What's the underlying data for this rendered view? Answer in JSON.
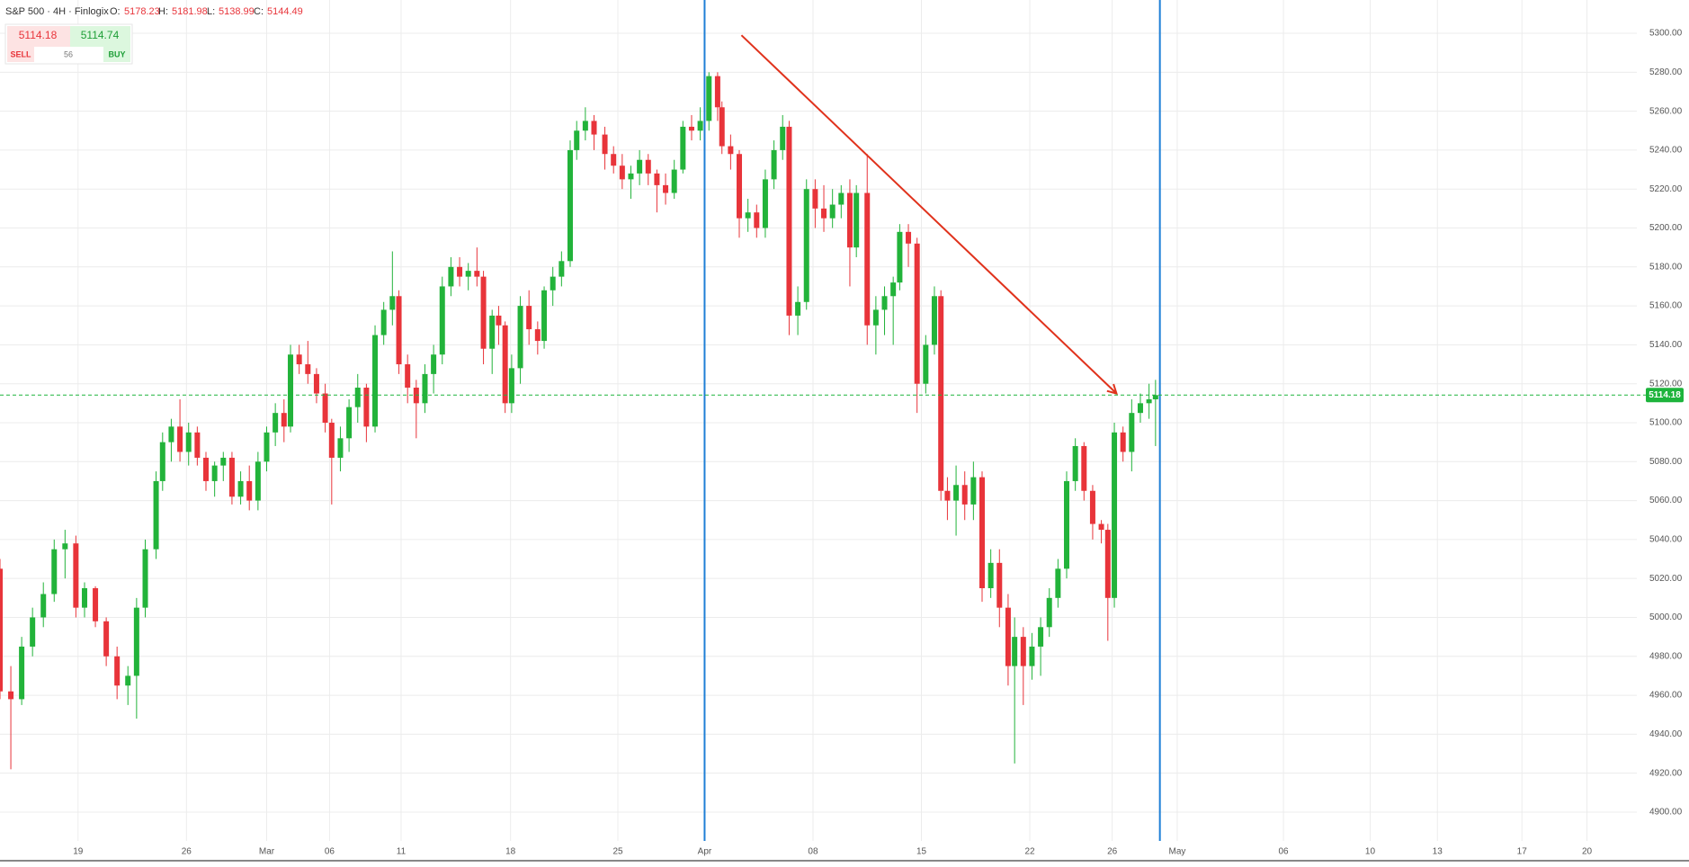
{
  "chart_data": {
    "type": "candlestick",
    "header": {
      "symbol": "S&P 500 · 4H · Finlogix",
      "o_label": "O:",
      "o": 5178.23,
      "h_label": "H:",
      "h": 5181.98,
      "l_label": "L:",
      "l": 5138.99,
      "c_label": "C:",
      "c": 5144.49
    },
    "trade": {
      "sell_price": 5114.18,
      "buy_price": 5114.74,
      "sell_label": "SELL",
      "buy_label": "BUY",
      "spread": 56
    },
    "last_price": 5114.18,
    "up_color": "#22b33a",
    "down_color": "#e8343a",
    "last_color": "#1db43c",
    "x": [
      -3.6,
      -3.1,
      -2.6,
      -2.1,
      -1.6,
      -1.1,
      -0.6,
      -0.1,
      0.3,
      0.8,
      1.3,
      1.8,
      2.3,
      2.7,
      3.1,
      3.6,
      3.9,
      4.3,
      4.7,
      5.1,
      5.5,
      5.9,
      6.3,
      6.7,
      7.1,
      7.5,
      7.9,
      8.3,
      8.7,
      9.1,
      9.5,
      9.8,
      10.2,
      10.6,
      11.0,
      11.4,
      11.7,
      12.1,
      12.5,
      12.9,
      13.3,
      13.7,
      14.1,
      14.5,
      14.8,
      15.2,
      15.6,
      16.0,
      16.4,
      16.8,
      17.2,
      17.6,
      18.0,
      18.4,
      18.7,
      19.1,
      19.4,
      19.7,
      20.0,
      20.4,
      20.8,
      21.2,
      21.5,
      21.9,
      22.3,
      22.7,
      23.0,
      23.4,
      23.8,
      24.3,
      24.7,
      25.1,
      25.5,
      25.9,
      26.3,
      26.7,
      27.1,
      27.5,
      27.9,
      28.3,
      28.7,
      29.1,
      29.5,
      29.7,
      30.1,
      30.5,
      30.9,
      31.3,
      31.7,
      32.1,
      32.5,
      32.8,
      33.2,
      33.6,
      34.0,
      34.4,
      34.8,
      35.2,
      35.6,
      35.9,
      36.4,
      36.8,
      37.2,
      37.6,
      37.9,
      38.3,
      38.7,
      39.1,
      39.5,
      39.8,
      40.1,
      40.5,
      40.9,
      41.3,
      41.7,
      42.1,
      42.5,
      42.9,
      43.2,
      43.6,
      44.0,
      44.4,
      44.8,
      45.2,
      45.6,
      46.0,
      46.4,
      46.8,
      47.2,
      47.5,
      47.8,
      48.2,
      48.6,
      49.0,
      49.4,
      49.7
    ],
    "open": [
      5025,
      4962,
      4958,
      4985,
      5000,
      5012,
      5035,
      5038,
      5005,
      5015,
      4998,
      4980,
      4965,
      4970,
      5005,
      5035,
      5070,
      5090,
      5098,
      5085,
      5095,
      5082,
      5070,
      5078,
      5082,
      5062,
      5070,
      5060,
      5080,
      5095,
      5105,
      5098,
      5135,
      5130,
      5125,
      5115,
      5100,
      5082,
      5092,
      5108,
      5118,
      5098,
      5145,
      5158,
      5165,
      5130,
      5118,
      5110,
      5125,
      5135,
      5170,
      5180,
      5175,
      5178,
      5175,
      5138,
      5155,
      5150,
      5110,
      5128,
      5160,
      5148,
      5142,
      5168,
      5175,
      5183,
      5240,
      5250,
      5255,
      5248,
      5238,
      5232,
      5225,
      5228,
      5235,
      5228,
      5222,
      5218,
      5230,
      5252,
      5250,
      5255,
      5278,
      5262,
      5242,
      5238,
      5205,
      5208,
      5200,
      5225,
      5240,
      5252,
      5155,
      5162,
      5220,
      5210,
      5205,
      5212,
      5218,
      5190,
      5218,
      5150,
      5158,
      5165,
      5172,
      5198,
      5192,
      5120,
      5140,
      5165,
      5065,
      5060,
      5068,
      5058,
      5072,
      5015,
      5028,
      5005,
      4975,
      4990,
      4975,
      4985,
      4995,
      5010,
      5025,
      5070,
      5088,
      5065,
      5048,
      5045,
      5010,
      5095,
      5085,
      5105,
      5110,
      5112
    ],
    "high": [
      5030,
      4975,
      4990,
      5005,
      5018,
      5040,
      5045,
      5042,
      5018,
      5016,
      5000,
      4985,
      4975,
      5010,
      5040,
      5075,
      5095,
      5102,
      5112,
      5100,
      5098,
      5085,
      5080,
      5085,
      5085,
      5075,
      5078,
      5085,
      5098,
      5110,
      5112,
      5140,
      5140,
      5142,
      5128,
      5120,
      5102,
      5098,
      5112,
      5125,
      5120,
      5150,
      5162,
      5188,
      5168,
      5135,
      5122,
      5130,
      5140,
      5175,
      5185,
      5185,
      5182,
      5190,
      5178,
      5158,
      5160,
      5152,
      5135,
      5165,
      5168,
      5152,
      5170,
      5180,
      5188,
      5245,
      5255,
      5262,
      5258,
      5252,
      5242,
      5238,
      5232,
      5240,
      5238,
      5230,
      5228,
      5235,
      5255,
      5258,
      5262,
      5280,
      5280,
      5265,
      5248,
      5240,
      5215,
      5212,
      5230,
      5245,
      5258,
      5255,
      5170,
      5225,
      5225,
      5222,
      5220,
      5222,
      5225,
      5222,
      5238,
      5165,
      5170,
      5175,
      5202,
      5202,
      5195,
      5145,
      5170,
      5168,
      5072,
      5078,
      5075,
      5080,
      5075,
      5035,
      5035,
      5012,
      5000,
      4995,
      4992,
      5000,
      5015,
      5030,
      5075,
      5092,
      5090,
      5068,
      5050,
      5048,
      5100,
      5098,
      5112,
      5115,
      5120,
      5122
    ],
    "low": [
      4958,
      4922,
      4955,
      4980,
      4995,
      5008,
      5020,
      5000,
      5000,
      4995,
      4975,
      4958,
      4955,
      4948,
      5000,
      5030,
      5065,
      5080,
      5080,
      5078,
      5078,
      5065,
      5062,
      5070,
      5058,
      5058,
      5055,
      5055,
      5075,
      5088,
      5090,
      5095,
      5125,
      5120,
      5110,
      5095,
      5058,
      5075,
      5085,
      5100,
      5090,
      5095,
      5140,
      5150,
      5125,
      5110,
      5092,
      5105,
      5115,
      5130,
      5165,
      5170,
      5168,
      5170,
      5130,
      5125,
      5140,
      5105,
      5105,
      5120,
      5140,
      5135,
      5138,
      5160,
      5170,
      5180,
      5235,
      5245,
      5240,
      5230,
      5228,
      5220,
      5215,
      5222,
      5222,
      5208,
      5212,
      5215,
      5228,
      5245,
      5245,
      5250,
      5255,
      5238,
      5230,
      5195,
      5198,
      5195,
      5195,
      5220,
      5235,
      5145,
      5145,
      5158,
      5200,
      5198,
      5200,
      5205,
      5170,
      5185,
      5140,
      5135,
      5145,
      5140,
      5168,
      5180,
      5105,
      5115,
      5135,
      5060,
      5050,
      5042,
      5050,
      5050,
      5008,
      5010,
      4995,
      4965,
      4925,
      4955,
      4968,
      4970,
      4990,
      5005,
      5020,
      5065,
      5060,
      5040,
      5038,
      4988,
      5005,
      5080,
      5075,
      5100,
      5102,
      5088
    ],
    "close": [
      4962,
      4958,
      4985,
      5000,
      5012,
      5035,
      5038,
      5005,
      5015,
      4998,
      4980,
      4965,
      4970,
      5005,
      5035,
      5070,
      5090,
      5098,
      5085,
      5095,
      5082,
      5070,
      5078,
      5082,
      5062,
      5070,
      5060,
      5080,
      5095,
      5105,
      5098,
      5135,
      5130,
      5125,
      5115,
      5100,
      5082,
      5092,
      5108,
      5118,
      5098,
      5145,
      5158,
      5165,
      5130,
      5118,
      5110,
      5125,
      5135,
      5170,
      5180,
      5175,
      5178,
      5175,
      5138,
      5155,
      5150,
      5110,
      5128,
      5160,
      5148,
      5142,
      5168,
      5175,
      5183,
      5240,
      5250,
      5255,
      5248,
      5238,
      5232,
      5225,
      5228,
      5235,
      5228,
      5222,
      5218,
      5230,
      5252,
      5250,
      5255,
      5278,
      5262,
      5242,
      5238,
      5205,
      5208,
      5200,
      5225,
      5240,
      5252,
      5155,
      5162,
      5220,
      5210,
      5205,
      5212,
      5218,
      5190,
      5218,
      5150,
      5158,
      5165,
      5172,
      5198,
      5192,
      5120,
      5140,
      5165,
      5065,
      5060,
      5068,
      5058,
      5072,
      5015,
      5028,
      5005,
      4975,
      4990,
      4975,
      4985,
      4995,
      5010,
      5025,
      5070,
      5088,
      5065,
      5048,
      5045,
      5010,
      5095,
      5085,
      5105,
      5110,
      5112,
      5114.18
    ],
    "vlines": [
      28.9,
      49.9
    ],
    "vline_color": "#1e7fd6",
    "trendline": {
      "x": [
        30.6,
        47.9
      ],
      "y": [
        5299,
        5115
      ],
      "color": "#e0321c"
    },
    "xlim": [
      -3.6,
      71.9
    ],
    "ylim": [
      4885.2,
      5317.1
    ],
    "grid": true,
    "xticks": [
      {
        "value": 0,
        "label": "19"
      },
      {
        "value": 5,
        "label": "26"
      },
      {
        "value": 8.7,
        "label": "Mar"
      },
      {
        "value": 11.6,
        "label": "06"
      },
      {
        "value": 14.9,
        "label": "11"
      },
      {
        "value": 19.95,
        "label": "18"
      },
      {
        "value": 24.9,
        "label": "25"
      },
      {
        "value": 28.9,
        "label": "Apr"
      },
      {
        "value": 33.9,
        "label": "08"
      },
      {
        "value": 38.9,
        "label": "15"
      },
      {
        "value": 43.9,
        "label": "22"
      },
      {
        "value": 47.7,
        "label": "26"
      },
      {
        "value": 50.7,
        "label": "May"
      },
      {
        "value": 55.6,
        "label": "06"
      },
      {
        "value": 59.6,
        "label": "10"
      },
      {
        "value": 62.7,
        "label": "13"
      },
      {
        "value": 66.6,
        "label": "17"
      },
      {
        "value": 69.6,
        "label": "20"
      }
    ],
    "yticks": [
      {
        "value": 4900,
        "label": "4900.00"
      },
      {
        "value": 4920,
        "label": "4920.00"
      },
      {
        "value": 4940,
        "label": "4940.00"
      },
      {
        "value": 4960,
        "label": "4960.00"
      },
      {
        "value": 4980,
        "label": "4980.00"
      },
      {
        "value": 5000,
        "label": "5000.00"
      },
      {
        "value": 5020,
        "label": "5020.00"
      },
      {
        "value": 5040,
        "label": "5040.00"
      },
      {
        "value": 5060,
        "label": "5060.00"
      },
      {
        "value": 5080,
        "label": "5080.00"
      },
      {
        "value": 5100,
        "label": "5100.00"
      },
      {
        "value": 5120,
        "label": "5120.00"
      },
      {
        "value": 5140,
        "label": "5140.00"
      },
      {
        "value": 5160,
        "label": "5160.00"
      },
      {
        "value": 5180,
        "label": "5180.00"
      },
      {
        "value": 5200,
        "label": "5200.00"
      },
      {
        "value": 5220,
        "label": "5220.00"
      },
      {
        "value": 5240,
        "label": "5240.00"
      },
      {
        "value": 5260,
        "label": "5260.00"
      },
      {
        "value": 5280,
        "label": "5280.00"
      },
      {
        "value": 5300,
        "label": "5300.00"
      }
    ]
  }
}
